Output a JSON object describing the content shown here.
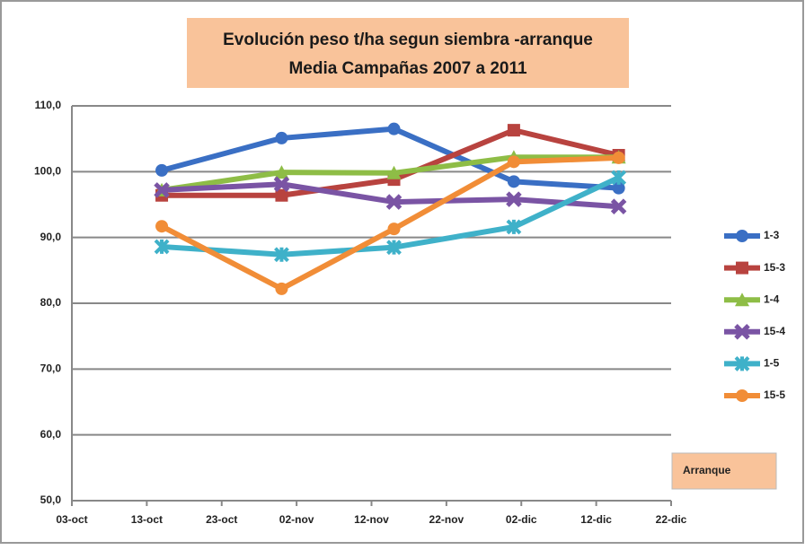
{
  "chart_data": {
    "type": "line",
    "title": [
      "Evolución peso t/ha segun siembra   -arranque",
      "Media Campañas 2007 a 2011"
    ],
    "annotation": "Arranque",
    "x": [
      "15-oct",
      "31-oct",
      "15-nov",
      "01-dic",
      "15-dic"
    ],
    "xlim": [
      "03-oct",
      "22-dic"
    ],
    "xticks": [
      "03-oct",
      "13-oct",
      "23-oct",
      "02-nov",
      "12-nov",
      "22-nov",
      "02-dic",
      "12-dic",
      "22-dic"
    ],
    "ylim": [
      50,
      110
    ],
    "yticks": [
      {
        "value": 50,
        "label": "50,0"
      },
      {
        "value": 60,
        "label": "60,0"
      },
      {
        "value": 70,
        "label": "70,0"
      },
      {
        "value": 80,
        "label": "80,0"
      },
      {
        "value": 90,
        "label": "90,0"
      },
      {
        "value": 100,
        "label": "100,0"
      },
      {
        "value": 110,
        "label": "110,0"
      }
    ],
    "grid": true,
    "legend": "right",
    "series": [
      {
        "name": "1-3",
        "color": "#3a6fc4",
        "marker": "circle",
        "values": [
          100.2,
          105.1,
          106.5,
          98.5,
          97.5
        ]
      },
      {
        "name": "15-3",
        "color": "#b8433f",
        "marker": "square",
        "values": [
          96.4,
          96.4,
          98.8,
          106.3,
          102.5
        ]
      },
      {
        "name": "1-4",
        "color": "#8ebd46",
        "marker": "triangle",
        "values": [
          97.2,
          99.9,
          99.8,
          102.2,
          102.2
        ]
      },
      {
        "name": "15-4",
        "color": "#7a54a4",
        "marker": "x",
        "values": [
          97.2,
          98.1,
          95.4,
          95.8,
          94.7
        ]
      },
      {
        "name": "1-5",
        "color": "#3fb1c9",
        "marker": "star",
        "values": [
          88.6,
          87.4,
          88.5,
          91.6,
          99.1
        ]
      },
      {
        "name": "15-5",
        "color": "#f18d37",
        "marker": "circle",
        "values": [
          91.7,
          82.2,
          91.3,
          101.5,
          102.1
        ]
      }
    ]
  }
}
